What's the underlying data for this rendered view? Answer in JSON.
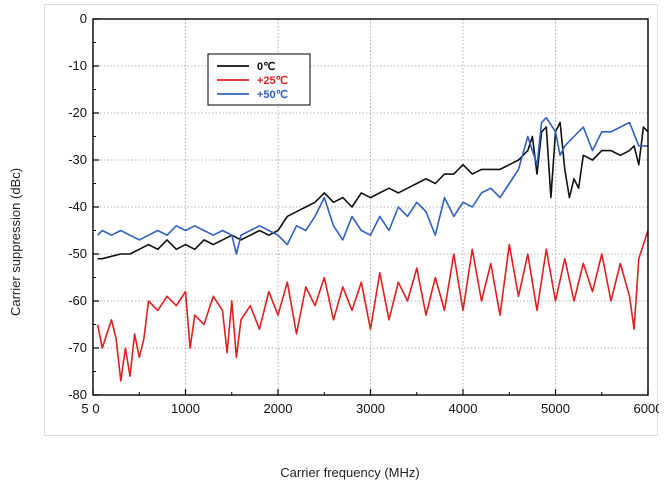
{
  "chart_data": {
    "type": "line",
    "title": "",
    "xlabel": "Carrier frequency (MHz)",
    "ylabel": "Carrier suppression (dBc)",
    "xlim": [
      0,
      6000
    ],
    "ylim": [
      -80,
      0
    ],
    "x_ticks": [
      0,
      1000,
      2000,
      3000,
      4000,
      5000,
      6000
    ],
    "x_tick_labels": [
      "0",
      "1000",
      "2000",
      "3000",
      "4000",
      "5000",
      "6000"
    ],
    "y_ticks": [
      0,
      -10,
      -20,
      -30,
      -40,
      -50,
      -60,
      -70,
      -80
    ],
    "y_tick_labels": [
      "0",
      "-10",
      "-20",
      "-30",
      "-40",
      "-50",
      "-60",
      "-70",
      "-80"
    ],
    "origin_label": "5",
    "grid": true,
    "legend_position": "top-left",
    "series": [
      {
        "name": "0℃",
        "color": "#111111",
        "x": [
          50,
          100,
          200,
          300,
          400,
          500,
          600,
          700,
          800,
          900,
          1000,
          1100,
          1200,
          1300,
          1400,
          1500,
          1600,
          1700,
          1800,
          1900,
          2000,
          2100,
          2200,
          2300,
          2400,
          2500,
          2600,
          2700,
          2800,
          2900,
          3000,
          3100,
          3200,
          3300,
          3400,
          3500,
          3600,
          3700,
          3800,
          3900,
          4000,
          4100,
          4200,
          4300,
          4400,
          4500,
          4600,
          4700,
          4750,
          4800,
          4850,
          4900,
          4950,
          5000,
          5050,
          5100,
          5150,
          5200,
          5250,
          5300,
          5400,
          5500,
          5600,
          5700,
          5800,
          5850,
          5900,
          5950,
          6000
        ],
        "y": [
          -51,
          -51,
          -50.5,
          -50,
          -50,
          -49,
          -48,
          -49,
          -47,
          -49,
          -48,
          -49,
          -47,
          -48,
          -47,
          -46,
          -47,
          -46,
          -45,
          -46,
          -45,
          -42,
          -41,
          -40,
          -39,
          -37,
          -39,
          -38,
          -40,
          -37,
          -38,
          -37,
          -36,
          -37,
          -36,
          -35,
          -34,
          -35,
          -33,
          -33,
          -31,
          -33,
          -32,
          -32,
          -32,
          -31,
          -30,
          -28,
          -25,
          -33,
          -24,
          -23,
          -38,
          -24,
          -22,
          -32,
          -38,
          -34,
          -36,
          -29,
          -30,
          -28,
          -28,
          -29,
          -28,
          -27,
          -31,
          -23,
          -24
        ]
      },
      {
        "name": "+25℃",
        "color": "#e02020",
        "x": [
          50,
          100,
          200,
          250,
          300,
          350,
          400,
          450,
          500,
          550,
          600,
          700,
          800,
          900,
          1000,
          1050,
          1100,
          1200,
          1300,
          1400,
          1450,
          1500,
          1550,
          1600,
          1700,
          1800,
          1900,
          2000,
          2100,
          2200,
          2300,
          2400,
          2500,
          2600,
          2700,
          2800,
          2900,
          3000,
          3100,
          3200,
          3300,
          3400,
          3500,
          3600,
          3700,
          3800,
          3900,
          4000,
          4100,
          4200,
          4300,
          4400,
          4500,
          4600,
          4700,
          4800,
          4900,
          5000,
          5100,
          5200,
          5300,
          5400,
          5500,
          5600,
          5700,
          5800,
          5850,
          5900,
          6000
        ],
        "y": [
          -65,
          -70,
          -64,
          -68,
          -77,
          -70,
          -76,
          -67,
          -72,
          -68,
          -60,
          -62,
          -59,
          -61,
          -58,
          -70,
          -63,
          -65,
          -59,
          -62,
          -71,
          -60,
          -72,
          -64,
          -61,
          -66,
          -58,
          -63,
          -56,
          -67,
          -57,
          -61,
          -55,
          -64,
          -57,
          -62,
          -56,
          -66,
          -54,
          -64,
          -56,
          -60,
          -53,
          -63,
          -55,
          -62,
          -50,
          -62,
          -49,
          -60,
          -52,
          -63,
          -48,
          -59,
          -50,
          -62,
          -49,
          -60,
          -51,
          -60,
          -52,
          -58,
          -50,
          -60,
          -52,
          -59,
          -66,
          -51,
          -45
        ]
      },
      {
        "name": "+50℃",
        "color": "#3060c0",
        "x": [
          50,
          100,
          200,
          300,
          400,
          500,
          600,
          700,
          800,
          900,
          1000,
          1100,
          1200,
          1300,
          1400,
          1500,
          1550,
          1600,
          1700,
          1800,
          1900,
          2000,
          2100,
          2200,
          2300,
          2400,
          2500,
          2600,
          2700,
          2800,
          2900,
          3000,
          3100,
          3200,
          3300,
          3400,
          3500,
          3600,
          3700,
          3800,
          3900,
          4000,
          4100,
          4200,
          4300,
          4400,
          4500,
          4600,
          4700,
          4800,
          4850,
          4900,
          5000,
          5050,
          5100,
          5200,
          5300,
          5400,
          5500,
          5600,
          5700,
          5800,
          5900,
          6000
        ],
        "y": [
          -46,
          -45,
          -46,
          -45,
          -46,
          -47,
          -46,
          -45,
          -46,
          -44,
          -45,
          -44,
          -45,
          -46,
          -45,
          -46,
          -50,
          -46,
          -45,
          -44,
          -45,
          -46,
          -48,
          -44,
          -45,
          -42,
          -38,
          -44,
          -47,
          -42,
          -45,
          -46,
          -42,
          -45,
          -40,
          -42,
          -39,
          -41,
          -46,
          -38,
          -42,
          -39,
          -40,
          -37,
          -36,
          -38,
          -35,
          -32,
          -25,
          -31,
          -22,
          -21,
          -24,
          -29,
          -27,
          -25,
          -23,
          -28,
          -24,
          -24,
          -23,
          -22,
          -27,
          -27
        ]
      }
    ]
  }
}
